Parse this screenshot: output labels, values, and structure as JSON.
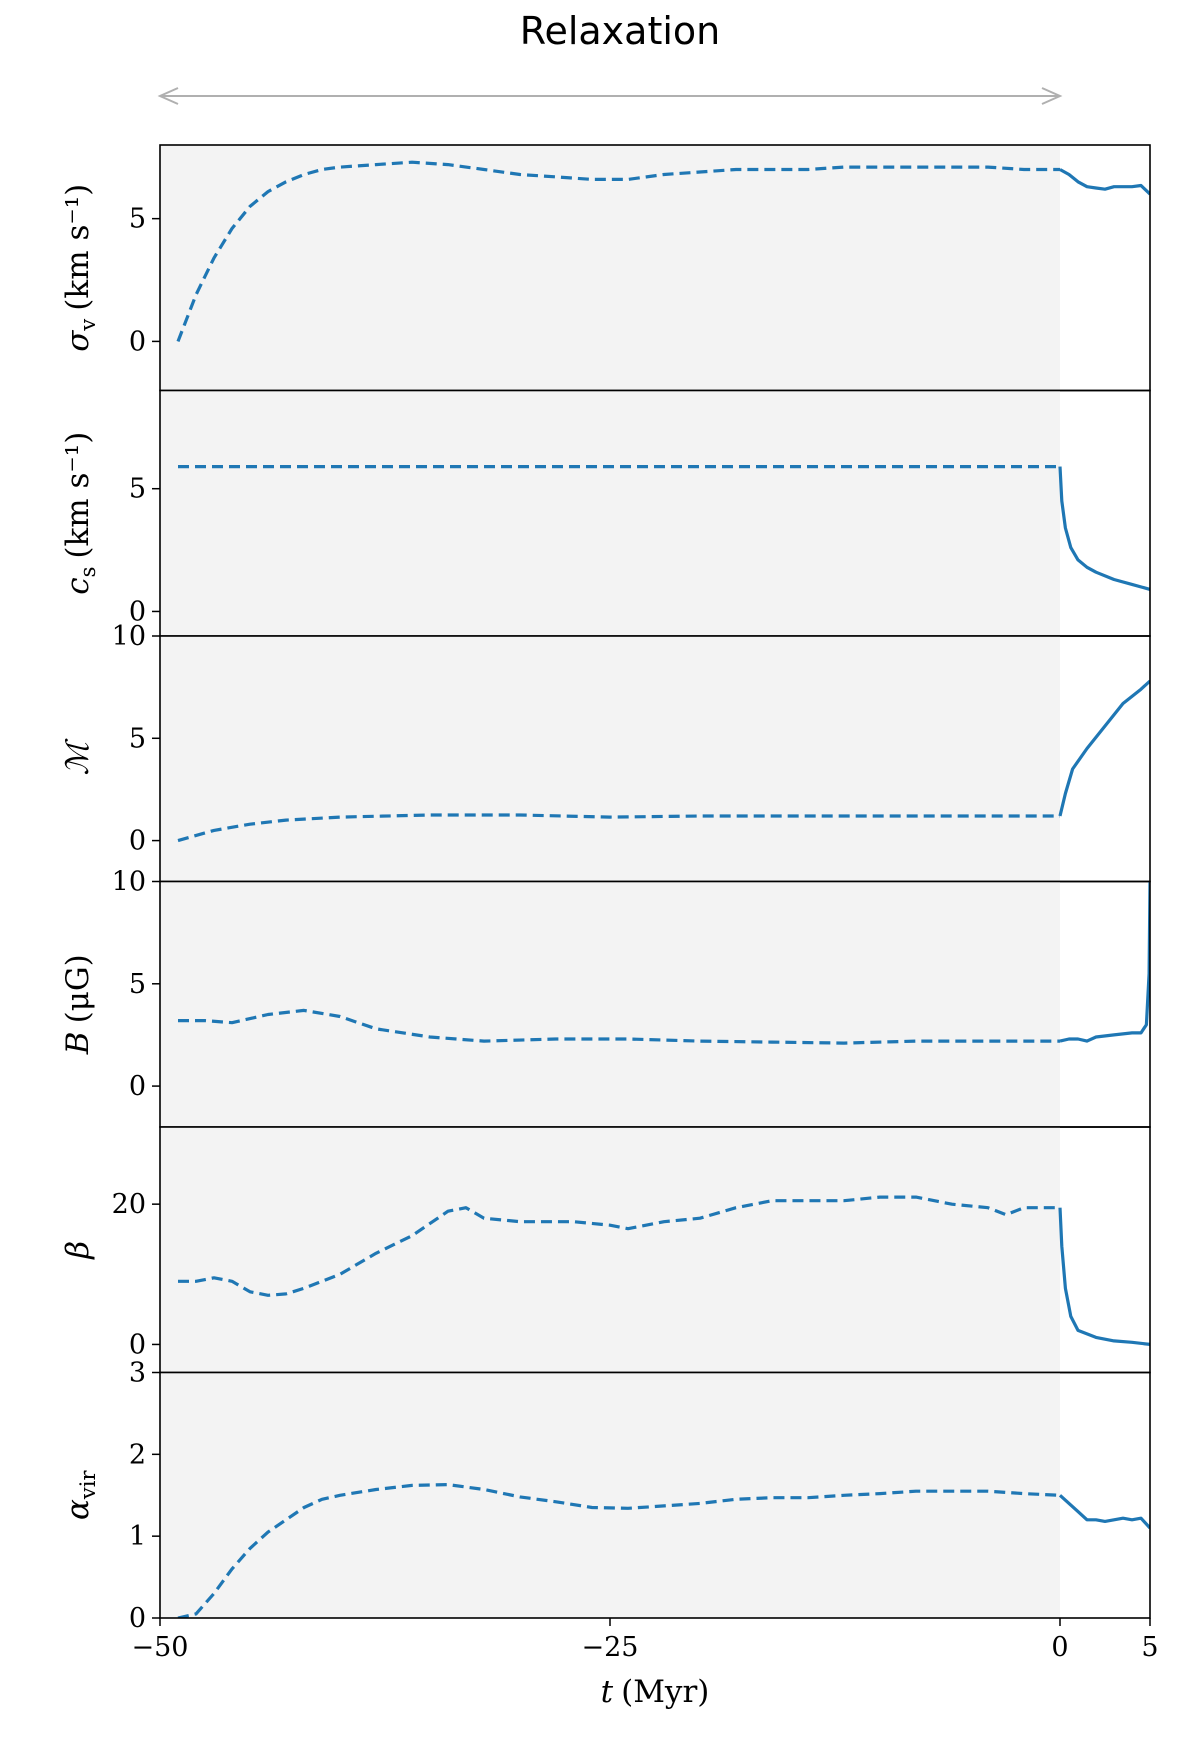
{
  "annotation": {
    "label": "Relaxation",
    "color": "#b0b0b0",
    "arrow_from": -50,
    "arrow_to": 0
  },
  "colors": {
    "line": "#1f77b4",
    "shade": "#f3f3f3",
    "annotation": "#b0b0b0"
  },
  "chart_data": {
    "type": "line",
    "shared_x": true,
    "xlabel_symbol": "t",
    "xlabel_unit": "(Myr)",
    "xlim": [
      -50,
      5
    ],
    "xticks": [
      -50,
      -25,
      0,
      5
    ],
    "xtick_labels": [
      "−50",
      "−25",
      "0",
      "5"
    ],
    "shaded_region": {
      "x": [
        -50,
        0
      ],
      "color": "#f3f3f3"
    },
    "linestyles": {
      "relaxation": "dashed",
      "evolution": "solid"
    },
    "panels": [
      {
        "ylabel_symbol": "σ",
        "ylabel_subscript": "v",
        "ylabel_unit": "(km s⁻¹)",
        "ylim": [
          -2,
          8
        ],
        "yticks": [
          0,
          5
        ],
        "ytick_labels": [
          "0",
          "5"
        ],
        "relaxation": [
          [
            -49,
            0
          ],
          [
            -48,
            1.9
          ],
          [
            -47,
            3.4
          ],
          [
            -46,
            4.6
          ],
          [
            -45,
            5.5
          ],
          [
            -44,
            6.1
          ],
          [
            -43,
            6.5
          ],
          [
            -42,
            6.8
          ],
          [
            -41,
            7.0
          ],
          [
            -40,
            7.1
          ],
          [
            -38,
            7.2
          ],
          [
            -36,
            7.3
          ],
          [
            -34,
            7.2
          ],
          [
            -32,
            7.0
          ],
          [
            -30,
            6.8
          ],
          [
            -28,
            6.7
          ],
          [
            -26,
            6.6
          ],
          [
            -24,
            6.6
          ],
          [
            -22,
            6.8
          ],
          [
            -20,
            6.9
          ],
          [
            -18,
            7.0
          ],
          [
            -16,
            7.0
          ],
          [
            -14,
            7.0
          ],
          [
            -12,
            7.1
          ],
          [
            -10,
            7.1
          ],
          [
            -8,
            7.1
          ],
          [
            -6,
            7.1
          ],
          [
            -4,
            7.1
          ],
          [
            -2,
            7.0
          ],
          [
            0,
            7.0
          ]
        ],
        "evolution": [
          [
            0,
            7.0
          ],
          [
            0.5,
            6.8
          ],
          [
            1,
            6.5
          ],
          [
            1.5,
            6.3
          ],
          [
            2,
            6.25
          ],
          [
            2.5,
            6.2
          ],
          [
            3,
            6.3
          ],
          [
            3.5,
            6.3
          ],
          [
            4,
            6.3
          ],
          [
            4.5,
            6.35
          ],
          [
            5,
            6.0
          ]
        ]
      },
      {
        "ylabel_symbol": "c",
        "ylabel_subscript": "s",
        "ylabel_unit": "(km s⁻¹)",
        "ylim": [
          -1,
          9
        ],
        "yticks": [
          0,
          5
        ],
        "ytick_labels": [
          "0",
          "5"
        ],
        "relaxation": [
          [
            -49,
            5.9
          ],
          [
            0,
            5.9
          ]
        ],
        "evolution": [
          [
            0,
            5.9
          ],
          [
            0.1,
            4.5
          ],
          [
            0.3,
            3.4
          ],
          [
            0.6,
            2.6
          ],
          [
            1,
            2.1
          ],
          [
            1.5,
            1.8
          ],
          [
            2,
            1.6
          ],
          [
            3,
            1.3
          ],
          [
            4,
            1.1
          ],
          [
            5,
            0.9
          ]
        ]
      },
      {
        "ylabel_symbol": "ℳ",
        "ylabel_subscript": "",
        "ylabel_unit": "",
        "ylim": [
          -2,
          10
        ],
        "yticks": [
          0,
          5,
          10
        ],
        "ytick_labels": [
          "0",
          "5",
          "10"
        ],
        "relaxation": [
          [
            -49,
            0
          ],
          [
            -47,
            0.5
          ],
          [
            -45,
            0.8
          ],
          [
            -43,
            1.0
          ],
          [
            -40,
            1.15
          ],
          [
            -35,
            1.25
          ],
          [
            -30,
            1.25
          ],
          [
            -25,
            1.15
          ],
          [
            -20,
            1.2
          ],
          [
            -10,
            1.2
          ],
          [
            0,
            1.2
          ]
        ],
        "evolution": [
          [
            0,
            1.2
          ],
          [
            0.3,
            2.3
          ],
          [
            0.7,
            3.5
          ],
          [
            1.5,
            4.5
          ],
          [
            2.5,
            5.6
          ],
          [
            3.5,
            6.7
          ],
          [
            4.5,
            7.4
          ],
          [
            5,
            7.8
          ]
        ]
      },
      {
        "ylabel_symbol": "B",
        "ylabel_subscript": "",
        "ylabel_unit": "(μG)",
        "ylim": [
          -2,
          10
        ],
        "yticks": [
          0,
          5,
          10
        ],
        "ytick_labels": [
          "0",
          "5",
          "10"
        ],
        "relaxation": [
          [
            -49,
            3.2
          ],
          [
            -47.5,
            3.2
          ],
          [
            -46,
            3.1
          ],
          [
            -44,
            3.5
          ],
          [
            -42,
            3.7
          ],
          [
            -40,
            3.4
          ],
          [
            -38,
            2.8
          ],
          [
            -35,
            2.4
          ],
          [
            -32,
            2.2
          ],
          [
            -28,
            2.3
          ],
          [
            -24,
            2.3
          ],
          [
            -20,
            2.2
          ],
          [
            -16,
            2.15
          ],
          [
            -12,
            2.1
          ],
          [
            -8,
            2.2
          ],
          [
            -4,
            2.2
          ],
          [
            0,
            2.2
          ]
        ],
        "evolution": [
          [
            0,
            2.2
          ],
          [
            0.5,
            2.3
          ],
          [
            1,
            2.3
          ],
          [
            1.5,
            2.2
          ],
          [
            2,
            2.4
          ],
          [
            3,
            2.5
          ],
          [
            4,
            2.6
          ],
          [
            4.5,
            2.6
          ],
          [
            4.8,
            3.0
          ],
          [
            4.95,
            5.5
          ],
          [
            5,
            10
          ]
        ]
      },
      {
        "ylabel_symbol": "β",
        "ylabel_subscript": "",
        "ylabel_unit": "",
        "ylim": [
          -4,
          31
        ],
        "yticks": [
          0,
          20
        ],
        "ytick_labels": [
          "0",
          "20"
        ],
        "relaxation": [
          [
            -49,
            9
          ],
          [
            -48,
            9
          ],
          [
            -47,
            9.5
          ],
          [
            -46,
            9
          ],
          [
            -45,
            7.5
          ],
          [
            -44,
            7
          ],
          [
            -43,
            7.2
          ],
          [
            -42,
            8
          ],
          [
            -40,
            10
          ],
          [
            -38,
            13
          ],
          [
            -36,
            15.5
          ],
          [
            -34,
            19
          ],
          [
            -33,
            19.5
          ],
          [
            -32,
            18
          ],
          [
            -30,
            17.5
          ],
          [
            -27,
            17.5
          ],
          [
            -25,
            17
          ],
          [
            -24,
            16.5
          ],
          [
            -22,
            17.5
          ],
          [
            -20,
            18
          ],
          [
            -18,
            19.5
          ],
          [
            -16,
            20.5
          ],
          [
            -14,
            20.5
          ],
          [
            -12,
            20.5
          ],
          [
            -10,
            21
          ],
          [
            -8,
            21
          ],
          [
            -6,
            20
          ],
          [
            -4,
            19.5
          ],
          [
            -3,
            18.5
          ],
          [
            -2,
            19.5
          ],
          [
            -1,
            19.5
          ],
          [
            0,
            19.5
          ]
        ],
        "evolution": [
          [
            0,
            19.5
          ],
          [
            0.1,
            14
          ],
          [
            0.3,
            8
          ],
          [
            0.6,
            4
          ],
          [
            1,
            2
          ],
          [
            2,
            1
          ],
          [
            3,
            0.5
          ],
          [
            4,
            0.3
          ],
          [
            5,
            0
          ]
        ]
      },
      {
        "ylabel_symbol": "α",
        "ylabel_subscript": "vir",
        "ylabel_unit": "",
        "ylim": [
          0,
          3
        ],
        "yticks": [
          0,
          1,
          2,
          3
        ],
        "ytick_labels": [
          "0",
          "1",
          "2",
          "3"
        ],
        "relaxation": [
          [
            -49,
            0
          ],
          [
            -48,
            0.05
          ],
          [
            -47,
            0.3
          ],
          [
            -46,
            0.6
          ],
          [
            -45,
            0.85
          ],
          [
            -44,
            1.05
          ],
          [
            -43,
            1.2
          ],
          [
            -42,
            1.35
          ],
          [
            -41,
            1.45
          ],
          [
            -40,
            1.5
          ],
          [
            -38,
            1.57
          ],
          [
            -36,
            1.62
          ],
          [
            -34,
            1.63
          ],
          [
            -32,
            1.57
          ],
          [
            -30,
            1.48
          ],
          [
            -28,
            1.42
          ],
          [
            -26,
            1.35
          ],
          [
            -24,
            1.34
          ],
          [
            -22,
            1.37
          ],
          [
            -20,
            1.4
          ],
          [
            -18,
            1.45
          ],
          [
            -16,
            1.47
          ],
          [
            -14,
            1.47
          ],
          [
            -12,
            1.5
          ],
          [
            -10,
            1.52
          ],
          [
            -8,
            1.55
          ],
          [
            -6,
            1.55
          ],
          [
            -4,
            1.55
          ],
          [
            -2,
            1.52
          ],
          [
            0,
            1.5
          ]
        ],
        "evolution": [
          [
            0,
            1.5
          ],
          [
            0.5,
            1.4
          ],
          [
            1,
            1.3
          ],
          [
            1.5,
            1.2
          ],
          [
            2,
            1.2
          ],
          [
            2.5,
            1.18
          ],
          [
            3,
            1.2
          ],
          [
            3.5,
            1.22
          ],
          [
            4,
            1.2
          ],
          [
            4.5,
            1.22
          ],
          [
            5,
            1.1
          ]
        ]
      }
    ]
  }
}
